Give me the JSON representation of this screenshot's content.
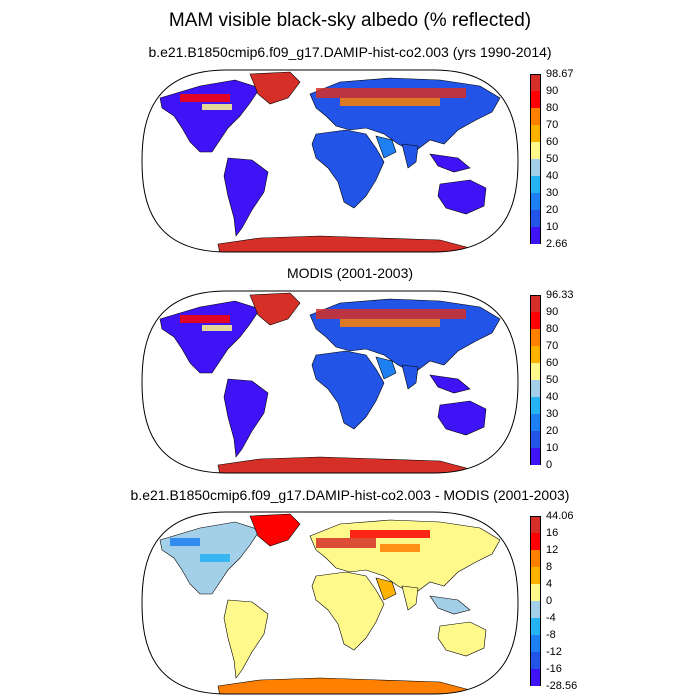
{
  "title": "MAM visible black-sky albedo (% reflected)",
  "panels": [
    {
      "title": "b.e21.B1850cmip6.f09_g17.DAMIP-hist-co2.003 (yrs 1990-2014)",
      "colorbar": {
        "labels": [
          "98.67",
          "90",
          "80",
          "70",
          "60",
          "50",
          "40",
          "30",
          "20",
          "10",
          "2.66"
        ],
        "colors": [
          "#d62f27",
          "#fe0000",
          "#ff8000",
          "#fdb101",
          "#fff88a",
          "#a3cfe9",
          "#25b3f3",
          "#1d7ff2",
          "#2254e8",
          "#3e14f7"
        ]
      },
      "land_scheme": "blue",
      "ice_color": "#d62f27"
    },
    {
      "title": "MODIS (2001-2003)",
      "colorbar": {
        "labels": [
          "96.33",
          "90",
          "80",
          "70",
          "60",
          "50",
          "40",
          "30",
          "20",
          "10",
          "0"
        ],
        "colors": [
          "#d62f27",
          "#fe0000",
          "#ff8000",
          "#fdb101",
          "#fff88a",
          "#a3cfe9",
          "#25b3f3",
          "#1d7ff2",
          "#2254e8",
          "#3e14f7"
        ]
      },
      "land_scheme": "blue",
      "ice_color": "#d62f27"
    },
    {
      "title": "b.e21.B1850cmip6.f09_g17.DAMIP-hist-co2.003 - MODIS (2001-2003)",
      "colorbar": {
        "labels": [
          "44.06",
          "16",
          "12",
          "8",
          "4",
          "0",
          "-4",
          "-8",
          "-12",
          "-16",
          "-28.56"
        ],
        "colors": [
          "#d62f27",
          "#fe0000",
          "#ff8000",
          "#fdb101",
          "#fff88a",
          "#a3cfe9",
          "#25b3f3",
          "#1d7ff2",
          "#2254e8",
          "#3e14f7"
        ]
      },
      "land_scheme": "yellow",
      "ice_color": "#ff8000"
    }
  ]
}
